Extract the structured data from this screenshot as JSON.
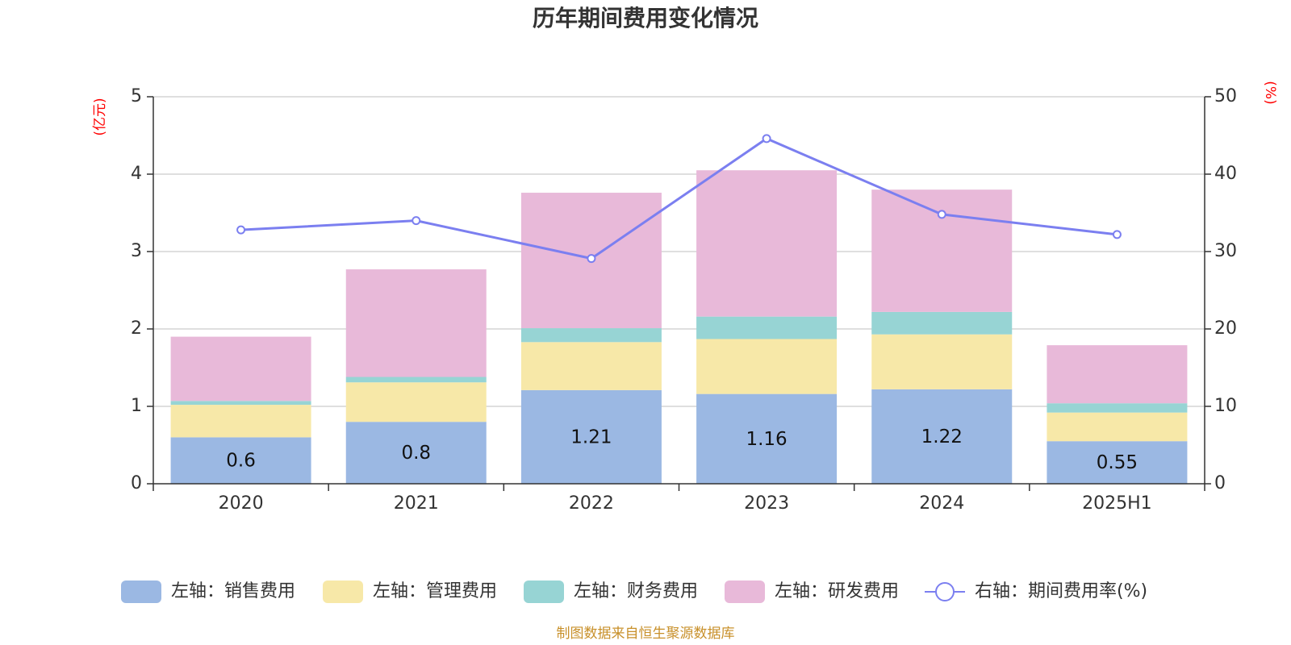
{
  "chart_data": {
    "type": "bar",
    "stacked": true,
    "title": "历年期间费用变化情况",
    "categories": [
      "2020",
      "2021",
      "2022",
      "2023",
      "2024",
      "2025H1"
    ],
    "left_axis": {
      "unit": "(亿元)",
      "ylim": [
        0,
        5
      ],
      "ticks": [
        "0",
        "1",
        "2",
        "3",
        "4",
        "5"
      ]
    },
    "right_axis": {
      "unit": "(%)",
      "ylim": [
        0,
        50
      ],
      "ticks": [
        "0",
        "10",
        "20",
        "30",
        "40",
        "50"
      ]
    },
    "grid": true,
    "legend_position": "bottom",
    "series": [
      {
        "name": "左轴：销售费用",
        "axis": "left",
        "color": "#9bb8e3",
        "values": [
          0.6,
          0.8,
          1.21,
          1.16,
          1.22,
          0.55
        ],
        "show_labels": true
      },
      {
        "name": "左轴：管理费用",
        "axis": "left",
        "color": "#f7e8a8",
        "values": [
          0.42,
          0.51,
          0.62,
          0.71,
          0.71,
          0.37
        ]
      },
      {
        "name": "左轴：财务费用",
        "axis": "left",
        "color": "#97d4d4",
        "values": [
          0.05,
          0.07,
          0.18,
          0.29,
          0.29,
          0.12
        ]
      },
      {
        "name": "左轴：研发费用",
        "axis": "left",
        "color": "#e8b9d9",
        "values": [
          0.83,
          1.39,
          1.75,
          1.89,
          1.58,
          0.75
        ]
      },
      {
        "name": "右轴：期间费用率(%)",
        "axis": "right",
        "type": "line",
        "color": "#7b7ff0",
        "values": [
          32.8,
          34.0,
          29.1,
          44.6,
          34.8,
          32.2
        ]
      }
    ],
    "source": "制图数据来自恒生聚源数据库"
  }
}
